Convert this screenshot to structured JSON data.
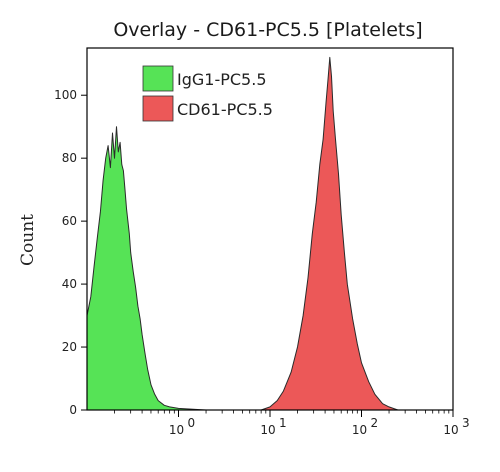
{
  "chart_data": {
    "type": "area",
    "title": "Overlay - CD61-PC5.5 [Platelets]",
    "xlabel": "",
    "ylabel": "Count",
    "x_scale": "log",
    "xlim": [
      0.1,
      1000
    ],
    "ylim": [
      0,
      115
    ],
    "y_ticks": [
      0,
      20,
      40,
      60,
      80,
      100
    ],
    "x_ticks": [
      {
        "value": 1,
        "label": "10",
        "exp": "0"
      },
      {
        "value": 10,
        "label": "10",
        "exp": "1"
      },
      {
        "value": 100,
        "label": "10",
        "exp": "2"
      },
      {
        "value": 1000,
        "label": "10",
        "exp": "3"
      }
    ],
    "legend_position": "top-left",
    "series": [
      {
        "name": "IgG1-PC5.5",
        "color": "#56e356",
        "x": [
          0.1,
          0.11,
          0.12,
          0.13,
          0.14,
          0.15,
          0.16,
          0.17,
          0.18,
          0.19,
          0.2,
          0.21,
          0.22,
          0.23,
          0.24,
          0.25,
          0.26,
          0.27,
          0.28,
          0.29,
          0.3,
          0.32,
          0.34,
          0.36,
          0.38,
          0.4,
          0.43,
          0.46,
          0.5,
          0.55,
          0.6,
          0.7,
          0.8,
          1.0,
          2.0,
          5.0,
          10.0
        ],
        "values": [
          30,
          36,
          46,
          55,
          63,
          73,
          80,
          84,
          77,
          88,
          80,
          90,
          82,
          85,
          78,
          76,
          70,
          64,
          60,
          56,
          50,
          44,
          39,
          33,
          29,
          24,
          18,
          13,
          8,
          5,
          3,
          1.5,
          1,
          0.5,
          0,
          0,
          0
        ]
      },
      {
        "name": "CD61-PC5.5",
        "color": "#ec5858",
        "x": [
          8,
          10,
          12,
          14,
          17,
          20,
          23,
          26,
          29,
          32,
          35,
          38,
          41,
          43,
          45,
          47,
          49,
          52,
          56,
          60,
          65,
          70,
          80,
          90,
          100,
          120,
          140,
          170,
          200,
          250
        ],
        "values": [
          0,
          1,
          3,
          6,
          12,
          20,
          30,
          42,
          56,
          66,
          78,
          86,
          98,
          105,
          112,
          106,
          95,
          86,
          75,
          62,
          50,
          40,
          29,
          21,
          15,
          9,
          5,
          2,
          1,
          0
        ]
      }
    ]
  }
}
